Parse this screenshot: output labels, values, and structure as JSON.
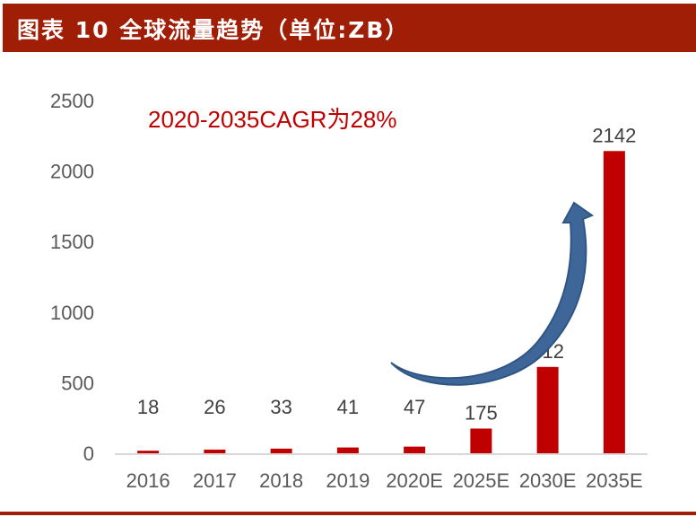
{
  "header": {
    "title": "图表 10 全球流量趋势（单位:ZB）"
  },
  "annotation": "2020-2035CAGR为28%",
  "colors": {
    "bar": "#C00000",
    "title_bg": "#A01D06",
    "arrow": "#3E6699"
  },
  "chart_data": {
    "type": "bar",
    "categories": [
      "2016",
      "2017",
      "2018",
      "2019",
      "2020E",
      "2025E",
      "2030E",
      "2035E"
    ],
    "values": [
      18,
      26,
      33,
      41,
      47,
      175,
      612,
      2142
    ],
    "ylim": [
      0,
      2500
    ],
    "yticks": [
      0,
      500,
      1000,
      1500,
      2000,
      2500
    ],
    "grid": false,
    "data_labels": true,
    "xlabel": "",
    "ylabel": ""
  }
}
